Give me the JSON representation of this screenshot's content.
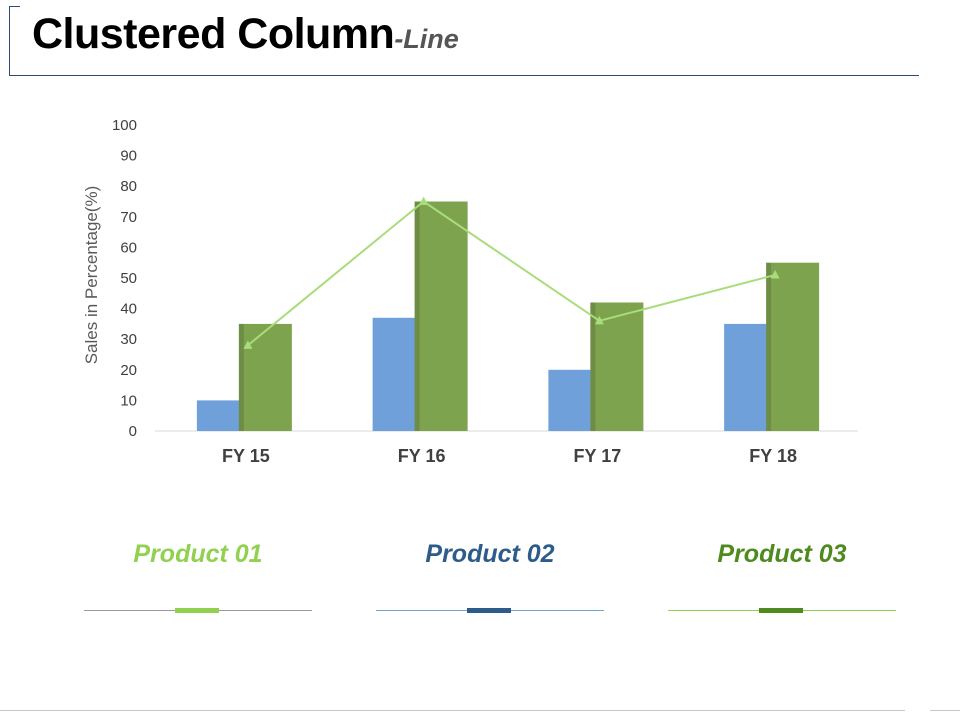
{
  "slide": {
    "title_main": "Clustered Column",
    "title_sub": "-Line"
  },
  "chart_data": {
    "type": "bar",
    "categories": [
      "FY 15",
      "FY 16",
      "FY 17",
      "FY 18"
    ],
    "series": [
      {
        "name": "Product 02",
        "kind": "bar",
        "color": "#6fa0d9",
        "values": [
          10,
          37,
          20,
          35
        ]
      },
      {
        "name": "Product 03",
        "kind": "bar",
        "color": "#7ea34f",
        "values": [
          35,
          75,
          42,
          55
        ]
      },
      {
        "name": "Product 01",
        "kind": "line",
        "color": "#a9dc7a",
        "marker": "triangle",
        "values": [
          28,
          75,
          36,
          51
        ]
      }
    ],
    "ylabel": "Sales in Percentage(%)",
    "xlabel": "",
    "ylim": [
      0,
      100
    ],
    "yticks": [
      0,
      10,
      20,
      30,
      40,
      50,
      60,
      70,
      80,
      90,
      100
    ],
    "grid": false
  },
  "legend": [
    {
      "label": "Product 01",
      "text_color": "#92d050",
      "line_color": "#9a9a9a",
      "tick_color": "#92d050"
    },
    {
      "label": "Product 02",
      "text_color": "#2e5c8a",
      "line_color": "#6fa6c9",
      "tick_color": "#2e5c8a"
    },
    {
      "label": "Product 03",
      "text_color": "#4e8a1e",
      "line_color": "#92d050",
      "tick_color": "#4e8a1e"
    }
  ]
}
